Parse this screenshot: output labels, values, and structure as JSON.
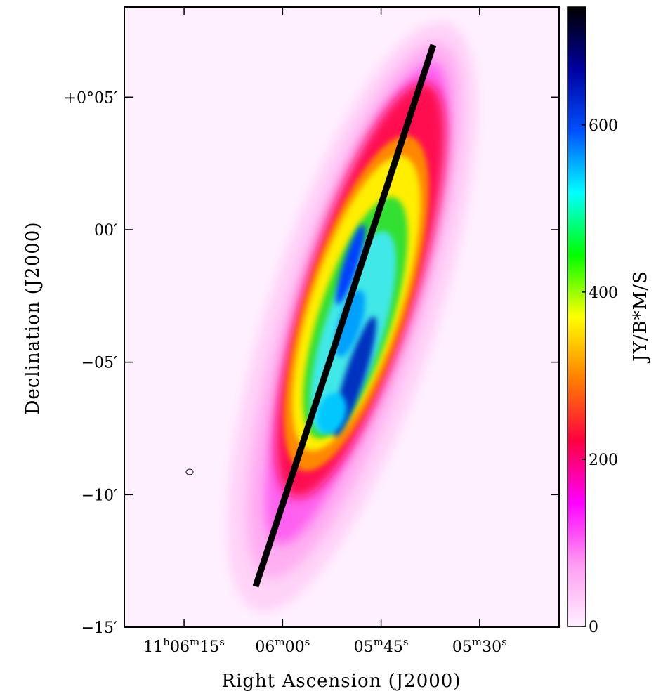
{
  "chart_data": {
    "type": "image",
    "x_label": "Right Ascension (J2000)",
    "y_label": "Declination (J2000)",
    "colorbar_label": "JY/B*M/S",
    "xlim": [
      39984.1,
      39917.9
    ],
    "xticks": [
      {
        "value": 39975,
        "label": "11h06m15s"
      },
      {
        "value": 39960,
        "label": "06m00s"
      },
      {
        "value": 39945,
        "label": "05m45s"
      },
      {
        "value": 39930,
        "label": "05m30s"
      }
    ],
    "ylim": [
      -15.0,
      8.4
    ],
    "yticks": [
      {
        "value": 5,
        "label": "+0°05′"
      },
      {
        "value": 0,
        "label": "00′"
      },
      {
        "value": -5,
        "label": "−05′"
      },
      {
        "value": -10,
        "label": "−10′"
      },
      {
        "value": -15,
        "label": "−15′"
      }
    ],
    "clim": [
      0,
      741
    ],
    "cticks": [
      0,
      200,
      400,
      600
    ],
    "colormap": [
      "#fff0ff",
      "#ff9cf2",
      "#ff00ff",
      "#ff0040",
      "#ff8000",
      "#ffff00",
      "#00ff00",
      "#00ffff",
      "#0050ff",
      "#0000a0",
      "#000000"
    ]
  }
}
